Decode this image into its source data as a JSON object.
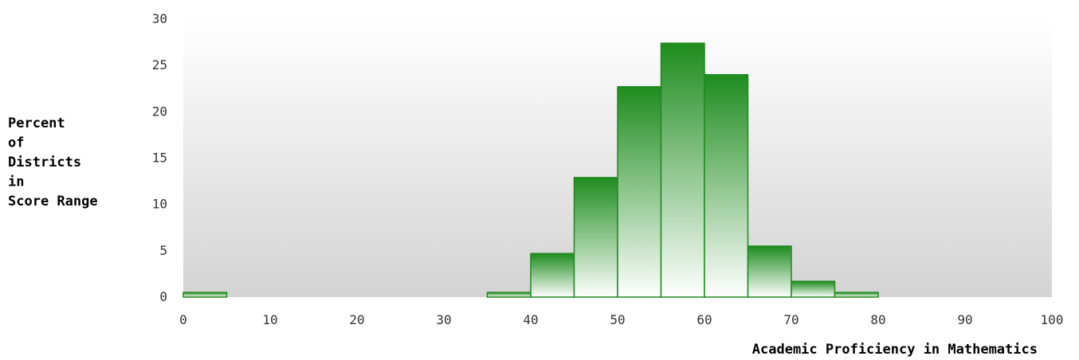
{
  "chart_data": {
    "type": "bar",
    "title": "",
    "xlabel": "Academic Proficiency in Mathematics",
    "ylabel_lines": [
      "Percent",
      "of",
      "Districts",
      "in",
      "Score Range"
    ],
    "xlim": [
      0,
      100
    ],
    "ylim": [
      0,
      30
    ],
    "x_ticks": [
      0,
      10,
      20,
      30,
      40,
      50,
      60,
      70,
      80,
      90,
      100
    ],
    "y_ticks": [
      0,
      5,
      10,
      15,
      20,
      25,
      30
    ],
    "bin_width": 5,
    "bins": [
      {
        "start": 0,
        "value": 0.5
      },
      {
        "start": 35,
        "value": 0.5
      },
      {
        "start": 40,
        "value": 4.7
      },
      {
        "start": 45,
        "value": 12.9
      },
      {
        "start": 50,
        "value": 22.7
      },
      {
        "start": 55,
        "value": 27.4
      },
      {
        "start": 60,
        "value": 24.0
      },
      {
        "start": 65,
        "value": 5.5
      },
      {
        "start": 70,
        "value": 1.7
      },
      {
        "start": 75,
        "value": 0.5
      }
    ],
    "grid": false,
    "colors": {
      "bar_stroke": "#1e8a1e",
      "bar_top": "#1e8c1e",
      "bar_bottom": "#ffffff",
      "plot_bg_top": "#ffffff",
      "plot_bg_bottom": "#d3d3d3"
    }
  }
}
